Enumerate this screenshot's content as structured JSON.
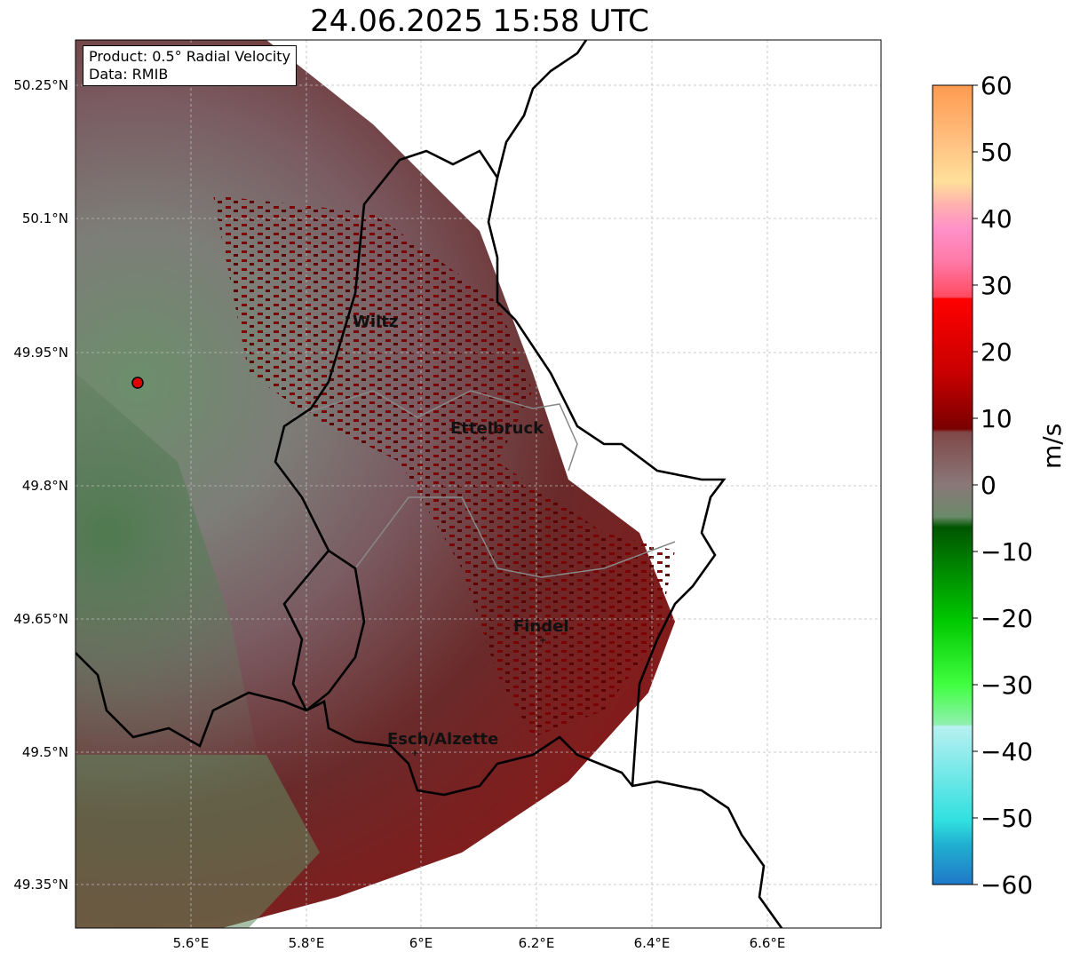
{
  "title": "24.06.2025 15:58 UTC",
  "info_box": {
    "product": "Product: 0.5° Radial Velocity",
    "source": "Data: RMIB"
  },
  "colorbar": {
    "label": "m/s",
    "ticks": [
      "60",
      "50",
      "40",
      "30",
      "20",
      "10",
      "0",
      "−10",
      "−20",
      "−30",
      "−40",
      "−50",
      "−60"
    ],
    "range": [
      -60,
      60
    ]
  },
  "axes": {
    "lat_ticks": [
      "50.25°N",
      "50.1°N",
      "49.95°N",
      "49.8°N",
      "49.65°N",
      "49.5°N",
      "49.35°N"
    ],
    "lon_ticks": [
      "5.6°E",
      "5.8°E",
      "6°E",
      "6.2°E",
      "6.4°E",
      "6.6°E"
    ]
  },
  "cities": [
    {
      "name": "Wiltz"
    },
    {
      "name": "Ettelbruck"
    },
    {
      "name": "Findel"
    },
    {
      "name": "Esch/Alzette"
    }
  ],
  "colors": {
    "inbound": "#2e7d32",
    "outbound": "#7a0000",
    "near_zero": "#8a7a7a",
    "radar_marker": "#e00000"
  }
}
